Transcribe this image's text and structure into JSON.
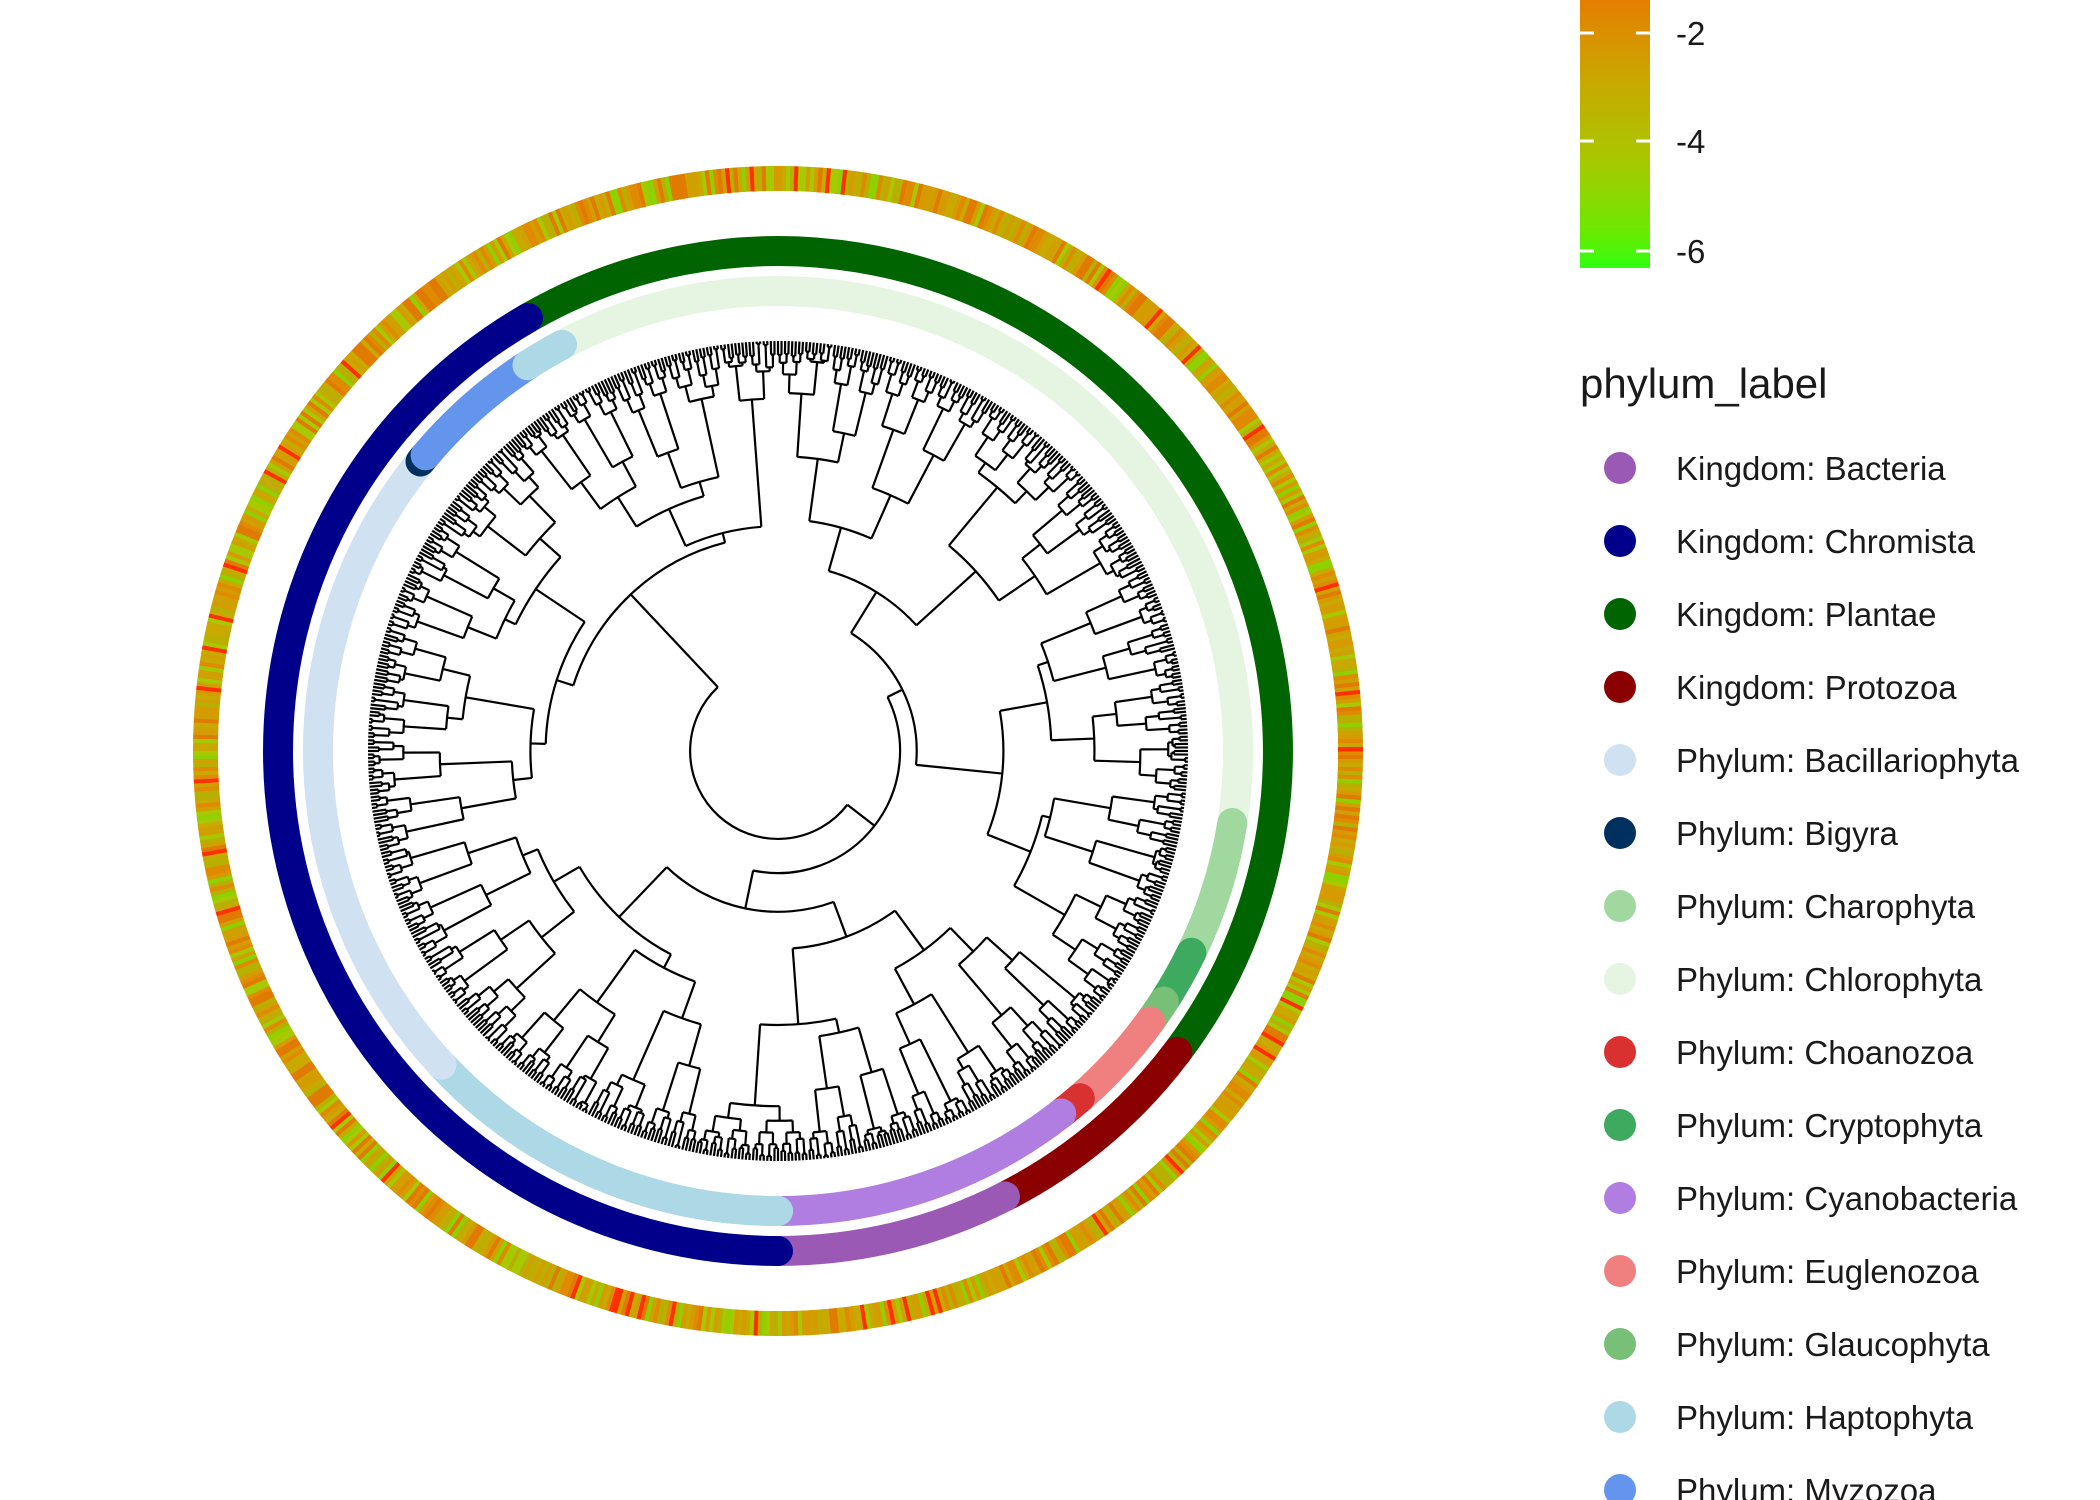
{
  "colorbar": {
    "ticks": [
      "-2",
      "-4",
      "-6"
    ],
    "colors": [
      "#f06a00",
      "#e68a00",
      "#c9a800",
      "#a8c800",
      "#80e000",
      "#30ff10"
    ]
  },
  "heat_palette": [
    "#c9a800",
    "#b8b000",
    "#d69b00",
    "#e08a00",
    "#a8c800",
    "#cfa000",
    "#e07a00",
    "#8fd000",
    "#ff3000"
  ],
  "legend": {
    "title": "phylum_label",
    "items": [
      {
        "label": "Kingdom: Bacteria",
        "color": "#9b59b6"
      },
      {
        "label": "Kingdom: Chromista",
        "color": "#00008b"
      },
      {
        "label": "Kingdom: Plantae",
        "color": "#006400"
      },
      {
        "label": "Kingdom: Protozoa",
        "color": "#8b0000"
      },
      {
        "label": "Phylum: Bacillariophyta",
        "color": "#d0e2f2"
      },
      {
        "label": "Phylum: Bigyra",
        "color": "#00305e"
      },
      {
        "label": "Phylum: Charophyta",
        "color": "#a0d8a0"
      },
      {
        "label": "Phylum: Chlorophyta",
        "color": "#e6f4e2"
      },
      {
        "label": "Phylum: Choanozoa",
        "color": "#d93030"
      },
      {
        "label": "Phylum: Cryptophyta",
        "color": "#3daa60"
      },
      {
        "label": "Phylum: Cyanobacteria",
        "color": "#b07ee0"
      },
      {
        "label": "Phylum: Euglenozoa",
        "color": "#f08080"
      },
      {
        "label": "Phylum: Glaucophyta",
        "color": "#78c078"
      },
      {
        "label": "Phylum: Haptophyta",
        "color": "#add8e6"
      },
      {
        "label": "Phylum: Myzozoa",
        "color": "#6495ed"
      }
    ]
  },
  "kingdom_ring": [
    {
      "kingdom": "Kingdom: Plantae",
      "start_deg": 240,
      "end_deg": 397
    },
    {
      "kingdom": "Kingdom: Protozoa",
      "start_deg": 397,
      "end_deg": 423
    },
    {
      "kingdom": "Kingdom: Bacteria",
      "start_deg": 423,
      "end_deg": 450
    },
    {
      "kingdom": "Kingdom: Chromista",
      "start_deg": 90,
      "end_deg": 240
    }
  ],
  "phylum_ring": [
    {
      "phylum": "Phylum: Chlorophyta",
      "start_deg": 243,
      "end_deg": 369
    },
    {
      "phylum": "Phylum: Charophyta",
      "start_deg": 369,
      "end_deg": 386
    },
    {
      "phylum": "Phylum: Cryptophyta",
      "start_deg": 386,
      "end_deg": 393
    },
    {
      "phylum": "Phylum: Glaucophyta",
      "start_deg": 393,
      "end_deg": 396
    },
    {
      "phylum": "Phylum: Euglenozoa",
      "start_deg": 396,
      "end_deg": 409
    },
    {
      "phylum": "Phylum: Choanozoa",
      "start_deg": 409,
      "end_deg": 412
    },
    {
      "phylum": "Phylum: Cyanobacteria",
      "start_deg": 412,
      "end_deg": 450
    },
    {
      "phylum": "Phylum: Bacillariophyta",
      "start_deg": 90,
      "end_deg": 137
    },
    {
      "phylum": "Phylum: Haptophyta",
      "start_deg": 90,
      "end_deg": 137
    },
    {
      "phylum": "Phylum: Bacillariophyta",
      "start_deg": 137,
      "end_deg": 219
    },
    {
      "phylum": "Phylum: Bigyra",
      "start_deg": 219,
      "end_deg": 220
    },
    {
      "phylum": "Phylum: Myzozoa",
      "start_deg": 220,
      "end_deg": 237
    },
    {
      "phylum": "Phylum: Haptophyta",
      "start_deg": 237,
      "end_deg": 242
    }
  ]
}
